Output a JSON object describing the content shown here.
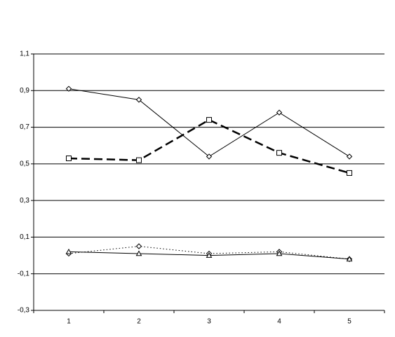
{
  "chart_data": {
    "type": "line",
    "categories": [
      "1",
      "2",
      "3",
      "4",
      "5"
    ],
    "series": [
      {
        "color": "#000000",
        "marker": "diamond",
        "line_width": 1,
        "dash": "solid",
        "values": [
          0.91,
          0.85,
          0.54,
          0.78,
          0.54
        ]
      },
      {
        "color": "#000000",
        "marker": "square",
        "line_width": 2.5,
        "dash": "dashed",
        "values": [
          0.53,
          0.52,
          0.74,
          0.56,
          0.45
        ]
      },
      {
        "color": "#000000",
        "marker": "diamond",
        "line_width": 1,
        "dash": "dotted",
        "values": [
          0.01,
          0.05,
          0.01,
          0.02,
          -0.02
        ]
      },
      {
        "color": "#000000",
        "marker": "triangle",
        "line_width": 1,
        "dash": "solid",
        "values": [
          0.02,
          0.01,
          0.0,
          0.01,
          -0.02
        ]
      }
    ],
    "ylim": [
      -0.3,
      1.1
    ],
    "yticks": [
      {
        "value": -0.3,
        "label": "-0,3"
      },
      {
        "value": -0.1,
        "label": "-0,1"
      },
      {
        "value": 0.1,
        "label": "0,1"
      },
      {
        "value": 0.3,
        "label": "0,3"
      },
      {
        "value": 0.5,
        "label": "0,5"
      },
      {
        "value": 0.7,
        "label": "0,7"
      },
      {
        "value": 0.9,
        "label": "0,9"
      },
      {
        "value": 1.1,
        "label": "1,1"
      }
    ],
    "grid": true
  }
}
